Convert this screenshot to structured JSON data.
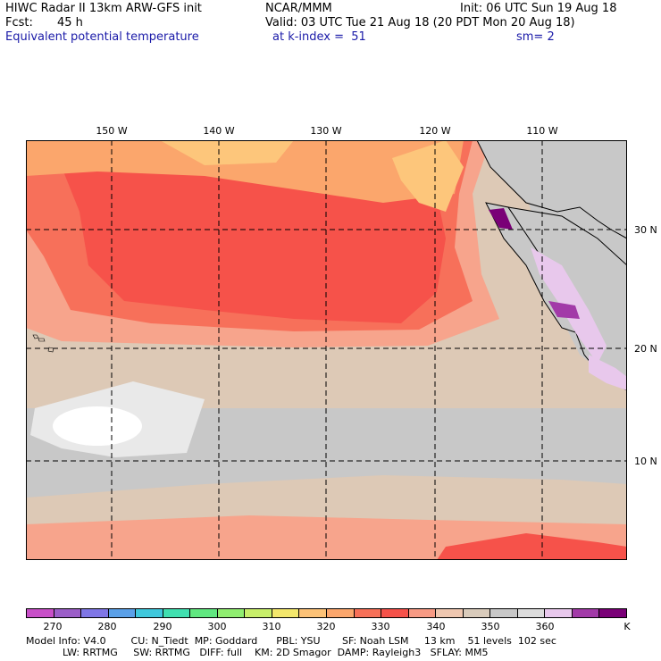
{
  "header": {
    "title": "HIWC Radar II 13km ARW-GFS init",
    "center": "NCAR/MMM",
    "init": "Init: 06 UTC Sun 19 Aug 18",
    "fcst_label": "Fcst:",
    "fcst_value": "45 h",
    "valid": "Valid: 03 UTC Tue 21 Aug 18 (20 PDT Mon 20 Aug 18)",
    "field": "Equivalent potential temperature",
    "k_index": "at k-index =  51",
    "smooth": "sm= 2"
  },
  "map": {
    "lon_labels": [
      "150 W",
      "140 W",
      "130 W",
      "120 W",
      "110 W"
    ],
    "lat_labels": [
      "30 N",
      "20 N",
      "10 N"
    ],
    "colors": {
      "ocean_gray": "#c8c8c8",
      "tan": "#ddc9b6",
      "salmon": "#f7a48c",
      "coral": "#f7705a",
      "red": "#f6524a",
      "orange": "#fba66c",
      "light_orange": "#fdc67b",
      "lavender": "#e8c8ec",
      "purple": "#a23aa8",
      "dark_purple": "#7a0077",
      "white": "#ffffff"
    }
  },
  "colorbar": {
    "colors": [
      "#c84fc8",
      "#9b5ec8",
      "#7f76e6",
      "#5aa0e8",
      "#3fc8dc",
      "#40e0b0",
      "#60e880",
      "#90ee70",
      "#c8ef6a",
      "#f3e76c",
      "#fcc277",
      "#fba66c",
      "#f77058",
      "#f6524a",
      "#f79a84",
      "#efc7b0",
      "#d9cbbb",
      "#c8c8c8",
      "#dcdcdc",
      "#e8c8ec",
      "#a23aa8",
      "#7a0077"
    ],
    "ticks": [
      "270",
      "280",
      "290",
      "300",
      "310",
      "320",
      "330",
      "340",
      "350",
      "360"
    ],
    "unit": "K"
  },
  "model_info": {
    "line1": "Model Info: V4.0        CU: N_Tiedt  MP: Goddard      PBL: YSU       SF: Noah LSM     13 km    51 levels  102 sec",
    "line2": "LW: RRTMG     SW: RRTMG   DIFF: full    KM: 2D Smagor  DAMP: Rayleigh3   SFLAY: MM5"
  }
}
